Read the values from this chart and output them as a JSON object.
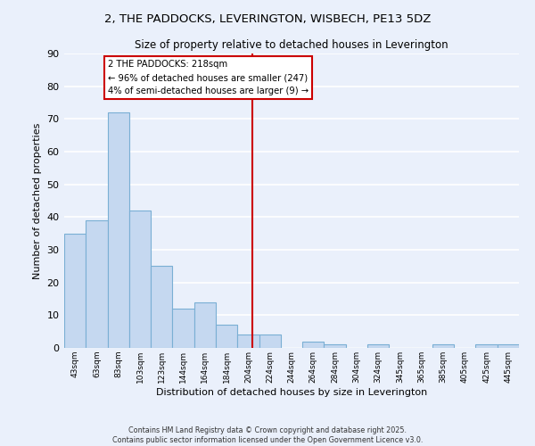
{
  "title": "2, THE PADDOCKS, LEVERINGTON, WISBECH, PE13 5DZ",
  "subtitle": "Size of property relative to detached houses in Leverington",
  "xlabel": "Distribution of detached houses by size in Leverington",
  "ylabel": "Number of detached properties",
  "bar_labels": [
    "43sqm",
    "63sqm",
    "83sqm",
    "103sqm",
    "123sqm",
    "144sqm",
    "164sqm",
    "184sqm",
    "204sqm",
    "224sqm",
    "244sqm",
    "264sqm",
    "284sqm",
    "304sqm",
    "324sqm",
    "345sqm",
    "365sqm",
    "385sqm",
    "405sqm",
    "425sqm",
    "445sqm"
  ],
  "bar_values": [
    35,
    39,
    72,
    42,
    25,
    12,
    14,
    7,
    4,
    4,
    0,
    2,
    1,
    0,
    1,
    0,
    0,
    1,
    0,
    1,
    1
  ],
  "bar_color": "#c5d8f0",
  "bar_edge_color": "#7aafd4",
  "bar_edge_width": 0.8,
  "background_color": "#eaf0fb",
  "grid_color": "#ffffff",
  "vline_color": "#cc0000",
  "vline_label_title": "2 THE PADDOCKS: 218sqm",
  "vline_label_line2": "← 96% of detached houses are smaller (247)",
  "vline_label_line3": "4% of semi-detached houses are larger (9) →",
  "annotation_box_edge_color": "#cc0000",
  "ylim": [
    0,
    90
  ],
  "yticks": [
    0,
    10,
    20,
    30,
    40,
    50,
    60,
    70,
    80,
    90
  ],
  "footer_line1": "Contains HM Land Registry data © Crown copyright and database right 2025.",
  "footer_line2": "Contains public sector information licensed under the Open Government Licence v3.0."
}
